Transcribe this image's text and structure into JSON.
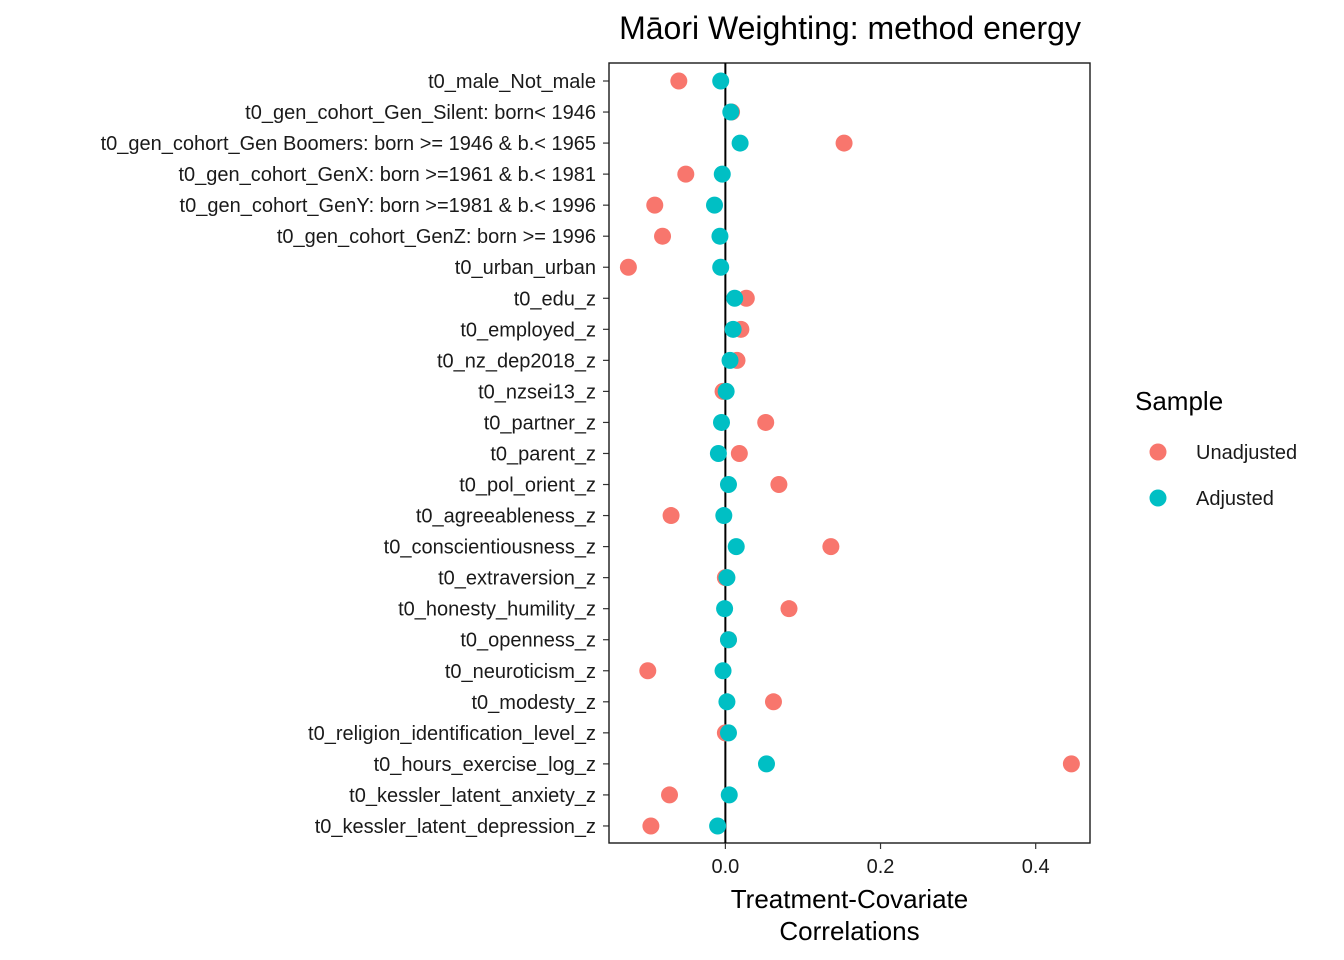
{
  "chart_data": {
    "type": "scatter",
    "title": "Māori Weighting: method energy",
    "xlabel_lines": [
      "Treatment-Covariate",
      "Correlations"
    ],
    "ylabel": "",
    "xlim": [
      -0.15,
      0.47
    ],
    "x_ticks": [
      0.0,
      0.2,
      0.4
    ],
    "x_tick_labels": [
      "0.0",
      "0.2",
      "0.4"
    ],
    "reference_line": 0,
    "grid": false,
    "legend": {
      "title": "Sample",
      "position": "right",
      "entries": [
        {
          "label": "Unadjusted",
          "color": "#F8766D"
        },
        {
          "label": "Adjusted",
          "color": "#00BFC4"
        }
      ]
    },
    "categories": [
      "t0_male_Not_male",
      "t0_gen_cohort_Gen_Silent: born< 1946",
      "t0_gen_cohort_Gen Boomers: born >= 1946 & b.< 1965",
      "t0_gen_cohort_GenX: born >=1961 & b.< 1981",
      "t0_gen_cohort_GenY: born >=1981 & b.< 1996",
      "t0_gen_cohort_GenZ: born >= 1996",
      "t0_urban_urban",
      "t0_edu_z",
      "t0_employed_z",
      "t0_nz_dep2018_z",
      "t0_nzsei13_z",
      "t0_partner_z",
      "t0_parent_z",
      "t0_pol_orient_z",
      "t0_agreeableness_z",
      "t0_conscientiousness_z",
      "t0_extraversion_z",
      "t0_honesty_humility_z",
      "t0_openness_z",
      "t0_neuroticism_z",
      "t0_modesty_z",
      "t0_religion_identification_level_z",
      "t0_hours_exercise_log_z",
      "t0_kessler_latent_anxiety_z",
      "t0_kessler_latent_depression_z"
    ],
    "series": [
      {
        "name": "Unadjusted",
        "color": "#F8766D",
        "values": [
          -0.06,
          0.008,
          0.153,
          -0.051,
          -0.091,
          -0.081,
          -0.125,
          0.027,
          0.02,
          0.015,
          -0.003,
          0.052,
          0.018,
          0.069,
          -0.07,
          0.136,
          0.0,
          0.082,
          0.004,
          -0.1,
          0.062,
          0.0,
          0.446,
          -0.072,
          -0.096
        ]
      },
      {
        "name": "Adjusted",
        "color": "#00BFC4",
        "values": [
          -0.006,
          0.007,
          0.019,
          -0.004,
          -0.014,
          -0.007,
          -0.006,
          0.012,
          0.01,
          0.006,
          0.001,
          -0.005,
          -0.009,
          0.004,
          -0.002,
          0.014,
          0.002,
          -0.001,
          0.004,
          -0.003,
          0.002,
          0.004,
          0.053,
          0.005,
          -0.01
        ]
      }
    ]
  }
}
